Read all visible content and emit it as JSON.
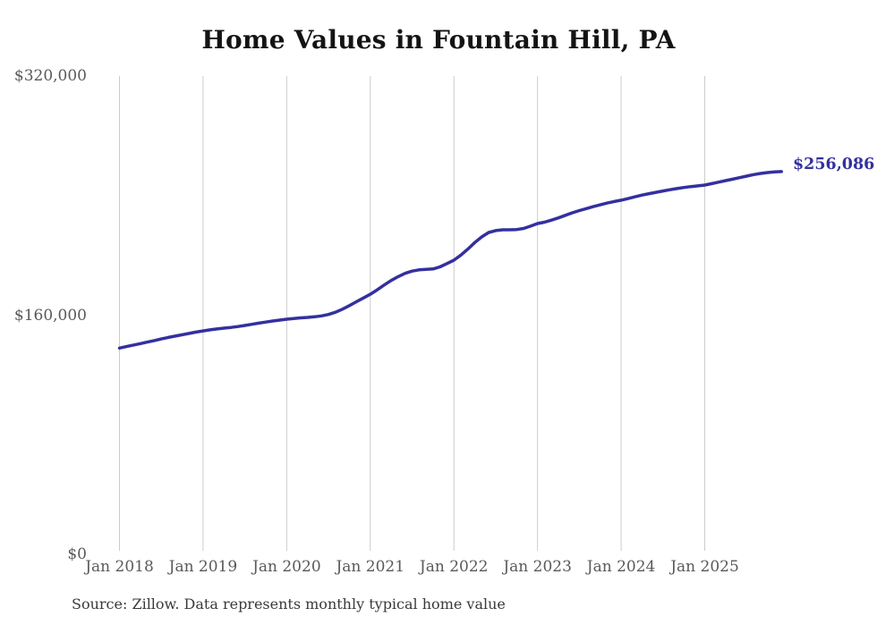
{
  "header": {
    "title": "Home Values in Fountain Hill, PA"
  },
  "footer": {
    "source_note": "Source: Zillow. Data represents monthly typical home value"
  },
  "annotation": {
    "end_value_label": "$256,086"
  },
  "colors": {
    "background": "#ffffff",
    "line": "#34309e",
    "gridline": "#cccccc",
    "title_text": "#141414",
    "tick_text": "#595959",
    "source_text": "#3a3a3a",
    "annotation_text": "#34309e"
  },
  "chart_data": {
    "type": "line",
    "title": "Home Values in Fountain Hill, PA",
    "xlabel": "",
    "ylabel": "",
    "x_start": "2018-01",
    "x_end": "2025-12",
    "x_interval": "month",
    "x_tick_labels": [
      "Jan 2018",
      "Jan 2019",
      "Jan 2020",
      "Jan 2021",
      "Jan 2022",
      "Jan 2023",
      "Jan 2024",
      "Jan 2025"
    ],
    "x_tick_month_indices": [
      0,
      12,
      24,
      36,
      48,
      60,
      72,
      84
    ],
    "y_ticks": [
      0,
      160000,
      320000
    ],
    "y_tick_labels": [
      "$0",
      "$160,000",
      "$320,000"
    ],
    "ylim": [
      0,
      320000
    ],
    "grid": "vertical-only",
    "legend": "none",
    "end_point_label": "$256,086",
    "end_point_value": 256086,
    "series": [
      {
        "name": "Monthly typical home value",
        "values": [
          138000,
          139000,
          140000,
          141000,
          142000,
          143000,
          144100,
          145100,
          146000,
          146900,
          147800,
          148700,
          149500,
          150200,
          150800,
          151300,
          151800,
          152400,
          153100,
          153900,
          154700,
          155400,
          156100,
          156700,
          157300,
          157800,
          158200,
          158500,
          158900,
          159500,
          160500,
          162000,
          164000,
          166400,
          169000,
          171500,
          174000,
          177000,
          180200,
          183200,
          185800,
          188000,
          189500,
          190300,
          190600,
          190900,
          192300,
          194500,
          196800,
          200200,
          204200,
          208600,
          212400,
          215300,
          216600,
          217100,
          217100,
          217300,
          218000,
          219600,
          221300,
          222200,
          223600,
          225100,
          226800,
          228500,
          230000,
          231300,
          232600,
          233800,
          235000,
          236000,
          236900,
          238000,
          239200,
          240300,
          241300,
          242200,
          243100,
          243900,
          244700,
          245400,
          246000,
          246500,
          247000,
          248000,
          249000,
          250000,
          251000,
          252000,
          253000,
          254000,
          254800,
          255400,
          255800,
          256086
        ]
      }
    ]
  }
}
